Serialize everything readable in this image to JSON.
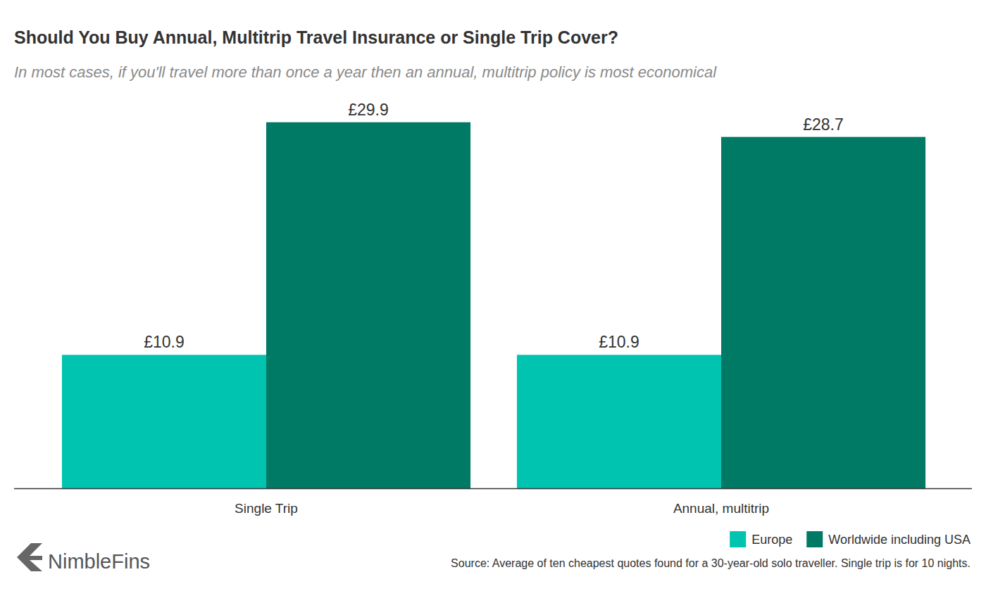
{
  "chart_data": {
    "type": "bar",
    "title": "Should You Buy Annual, Multitrip Travel Insurance or Single Trip Cover?",
    "subtitle": "In most cases, if you'll travel more than once a year then an annual, multitrip policy is most economical",
    "categories": [
      "Single Trip",
      "Annual, multitrip"
    ],
    "series": [
      {
        "name": "Europe",
        "color": "#00c4b0",
        "values": [
          10.9,
          10.9
        ],
        "value_labels": [
          "£10.9",
          "£10.9"
        ]
      },
      {
        "name": "Worldwide including USA",
        "color": "#007a64",
        "values": [
          29.9,
          28.7
        ],
        "value_labels": [
          "£29.9",
          "£28.7"
        ]
      }
    ],
    "ylim": [
      0,
      30
    ],
    "data_labels": true,
    "tick_labels": "x",
    "grid": false,
    "legend": "bottom-right",
    "note": "Source: Average of ten cheapest quotes found for a 30-year-old solo traveller. Single trip is for 10 nights.",
    "brand": "NimbleFins"
  }
}
